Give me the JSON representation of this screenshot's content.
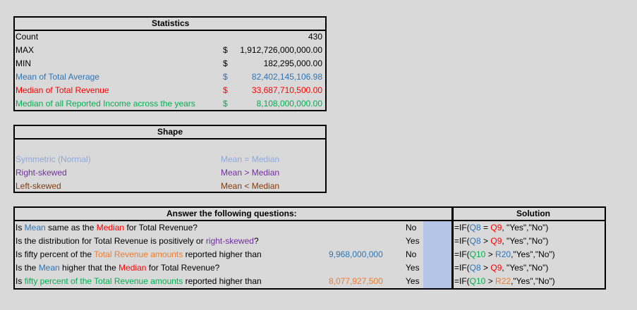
{
  "stats": {
    "title": "Statistics",
    "rows": [
      {
        "label": "Count",
        "dollar": "",
        "value": "430"
      },
      {
        "label": "MAX",
        "dollar": "$",
        "value": "1,912,726,000,000.00"
      },
      {
        "label": "MIN",
        "dollar": "$",
        "value": "182,295,000.00"
      },
      {
        "label": "Mean of Total Average",
        "dollar": "$",
        "value": "82,402,145,106.98"
      },
      {
        "label": "Median of Total Revenue",
        "dollar": "$",
        "value": "33,687,710,500.00"
      },
      {
        "label": "Median of all Reported Income across the years",
        "dollar": "$",
        "value": "8,108,000,000.00"
      }
    ]
  },
  "shape": {
    "title": "Shape",
    "rows": [
      {
        "label": "Symmetric (Normal)",
        "rule": "Mean = Median"
      },
      {
        "label": "Right-skewed",
        "rule": "Mean > Median"
      },
      {
        "label": "Left-skewed",
        "rule": "Mean < Median"
      }
    ]
  },
  "questions": {
    "title": "Answer the following questions:",
    "solution_title": "Solution",
    "rows": [
      {
        "q_pre": "Is ",
        "q_a": "Mean",
        "q_mid": " same as the ",
        "q_b": "Median",
        "q_post": " for Total Revenue?",
        "value": "",
        "answer": "No",
        "formula": {
          "pre": "=IF(",
          "a": "Q8",
          "mid": " = ",
          "b": "Q9",
          "post": ", \"Yes\",\"No\")"
        }
      },
      {
        "q_pre": "Is the distribution for Total Revenue is positively or ",
        "q_a": "right-skewed",
        "q_mid": "?",
        "q_b": "",
        "q_post": "",
        "value": "",
        "answer": "Yes",
        "formula": {
          "pre": "=IF(",
          "a": "Q8",
          "mid": " > ",
          "b": "Q9",
          "post": ", \"Yes\",\"No\")"
        }
      },
      {
        "q_pre": "Is fifty percent of the ",
        "q_a": "Total Revenue amounts",
        "q_mid": " reported higher than",
        "q_b": "",
        "q_post": "",
        "value": "9,968,000,000",
        "answer": "No",
        "formula": {
          "pre": "=IF(",
          "a": "Q10",
          "mid": " > ",
          "b": "R20",
          "post": ",\"Yes\",\"No\")"
        }
      },
      {
        "q_pre": "Is the ",
        "q_a": "Mean",
        "q_mid": " higher that the ",
        "q_b": "Median",
        "q_post": " for Total Revenue?",
        "value": "",
        "answer": "Yes",
        "formula": {
          "pre": "=IF(",
          "a": "Q8",
          "mid": " > ",
          "b": "Q9",
          "post": ", \"Yes\",\"No\")"
        }
      },
      {
        "q_pre": "Is ",
        "q_a": "fifty percent of the Total Revenue amounts",
        "q_mid": " reported higher than",
        "q_b": "",
        "q_post": "",
        "value": "8,077,927,500",
        "answer": "Yes",
        "formula": {
          "pre": "=IF(",
          "a": "Q10",
          "mid": " > ",
          "b": "R22",
          "post": ",\"Yes\",\"No\")"
        }
      }
    ]
  }
}
